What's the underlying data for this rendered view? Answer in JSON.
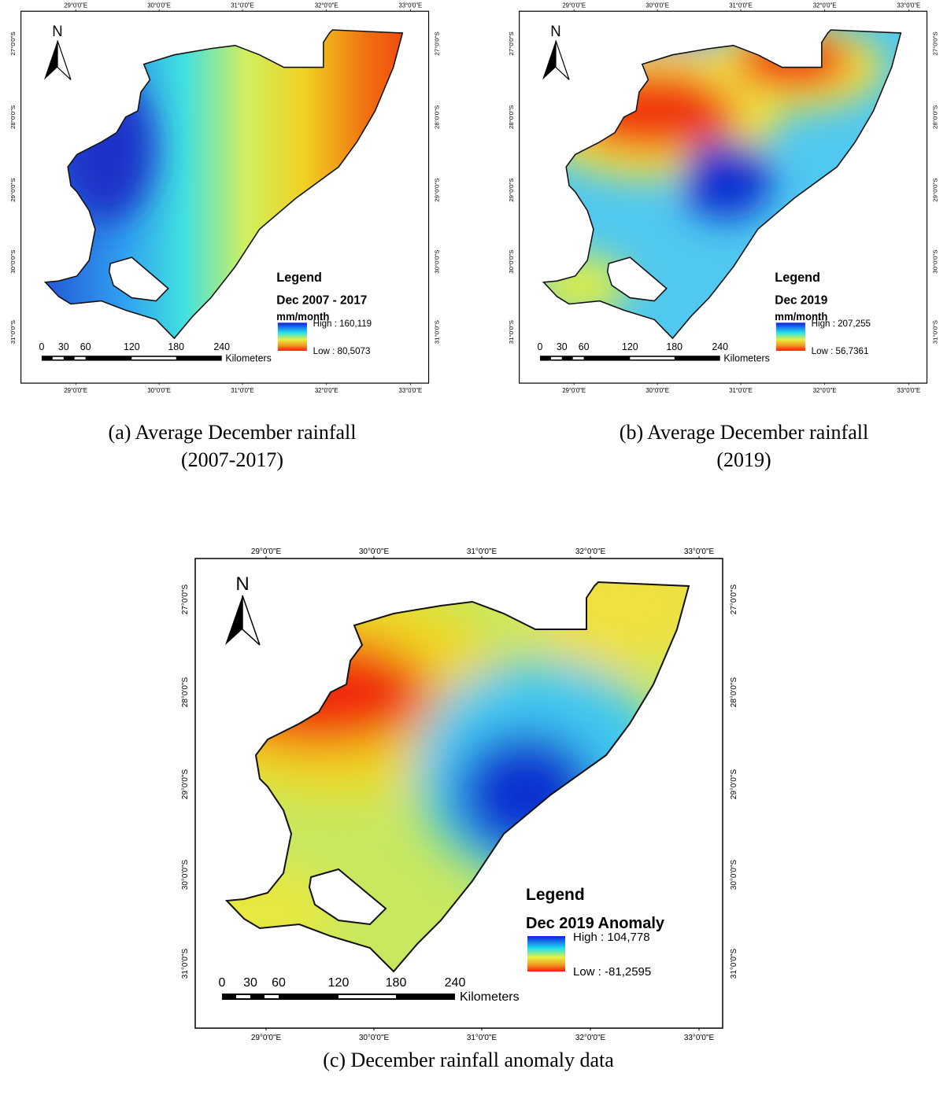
{
  "panels": [
    {
      "ticks_x": [
        "29°0'0\"E",
        "30°0'0\"E",
        "31°0'0\"E",
        "32°0'0\"E",
        "33°0'0\"E"
      ],
      "ticks_y": [
        "27°0'0\"S",
        "28°0'0\"S",
        "29°0'0\"S",
        "30°0'0\"S",
        "31°0'0\"S"
      ],
      "north": "N",
      "legend": {
        "title": "Legend",
        "subtitle": "Dec 2007 - 2017",
        "unit": "mm/month",
        "high": "High : 160,119",
        "low": "Low : 80,5073"
      },
      "scale": {
        "labels": [
          "0",
          "30",
          "60",
          "120",
          "180",
          "240"
        ],
        "unit": "Kilometers"
      },
      "caption": [
        "(a)  Average December rainfall",
        "(2007-2017)"
      ]
    },
    {
      "ticks_x": [
        "29°0'0\"E",
        "30°0'0\"E",
        "31°0'0\"E",
        "32°0'0\"E",
        "33°0'0\"E"
      ],
      "ticks_y": [
        "27°0'0\"S",
        "28°0'0\"S",
        "29°0'0\"S",
        "30°0'0\"S",
        "31°0'0\"S"
      ],
      "north": "N",
      "legend": {
        "title": "Legend",
        "subtitle": "Dec 2019",
        "unit": "mm/month",
        "high": "High : 207,255",
        "low": "Low : 56,7361"
      },
      "scale": {
        "labels": [
          "0",
          "30",
          "60",
          "120",
          "180",
          "240"
        ],
        "unit": "Kilometers"
      },
      "caption": [
        "(b)  Average December rainfall",
        "(2019)"
      ]
    },
    {
      "ticks_x": [
        "29°0'0\"E",
        "30°0'0\"E",
        "31°0'0\"E",
        "32°0'0\"E",
        "33°0'0\"E"
      ],
      "ticks_y": [
        "27°0'0\"S",
        "28°0'0\"S",
        "29°0'0\"S",
        "30°0'0\"S",
        "31°0'0\"S"
      ],
      "north": "N",
      "legend": {
        "title": "Legend",
        "subtitle": "Dec 2019 Anomaly",
        "high": "High : 104,778",
        "low": "Low : -81,2595"
      },
      "scale": {
        "labels": [
          "0",
          "30",
          "60",
          "120",
          "180",
          "240"
        ],
        "unit": "Kilometers"
      },
      "caption": [
        "(c)  December rainfall anomaly data"
      ]
    }
  ]
}
